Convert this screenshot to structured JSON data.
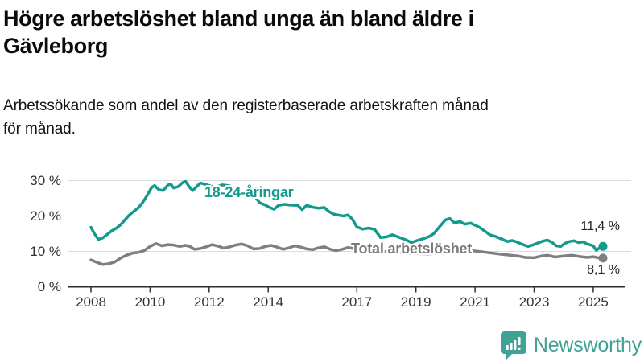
{
  "header": {
    "title_line1": "Högre arbetslöshet bland unga än bland äldre i",
    "title_line2": "Gävleborg",
    "subtitle_line1": "Arbetssökande som andel av den registerbaserade arbetskraften månad",
    "subtitle_line2": "för månad."
  },
  "colors": {
    "accent_teal": "#149a8d",
    "line_gray": "#7f7f7f",
    "label_gray": "#7a7a7a",
    "gridline": "#dcdcdc",
    "axis": "#2e2e2e",
    "tick_text": "#333333",
    "value_text": "#222222",
    "brand_teal": "#3fa294"
  },
  "branding": {
    "name": "Newsworthy",
    "icon": "newsworthy-bar-chart-bubble-icon"
  },
  "chart_data": {
    "type": "line",
    "unit": "%",
    "frequency": "monthly",
    "xlabel": "",
    "ylabel": "",
    "ylim": [
      0,
      30
    ],
    "x_range": [
      2008,
      2025.5
    ],
    "grid": "horizontal",
    "y_ticks": [
      {
        "value": 0,
        "label": "0 %"
      },
      {
        "value": 10,
        "label": "10 %"
      },
      {
        "value": 20,
        "label": "20 %"
      },
      {
        "value": 30,
        "label": "30 %"
      }
    ],
    "x_ticks": [
      {
        "value": 2008,
        "label": "2008"
      },
      {
        "value": 2010,
        "label": "2010"
      },
      {
        "value": 2012,
        "label": "2012"
      },
      {
        "value": 2014,
        "label": "2014"
      },
      {
        "value": 2017,
        "label": "2017"
      },
      {
        "value": 2019,
        "label": "2019"
      },
      {
        "value": 2021,
        "label": "2021"
      },
      {
        "value": 2023,
        "label": "2023"
      },
      {
        "value": 2025,
        "label": "2025"
      }
    ],
    "series": [
      {
        "id": "young",
        "name": "18-24-åringar",
        "color": "#149a8d",
        "end_label": "11,4 %",
        "end_value": 11.4,
        "points": [
          [
            2008.0,
            16.8
          ],
          [
            2008.1,
            15.2
          ],
          [
            2008.25,
            13.4
          ],
          [
            2008.4,
            13.8
          ],
          [
            2008.55,
            14.8
          ],
          [
            2008.7,
            15.8
          ],
          [
            2008.85,
            16.5
          ],
          [
            2009.0,
            17.5
          ],
          [
            2009.15,
            18.9
          ],
          [
            2009.3,
            20.3
          ],
          [
            2009.45,
            21.3
          ],
          [
            2009.6,
            22.3
          ],
          [
            2009.75,
            23.8
          ],
          [
            2009.9,
            25.8
          ],
          [
            2010.05,
            28.0
          ],
          [
            2010.15,
            28.6
          ],
          [
            2010.3,
            27.4
          ],
          [
            2010.45,
            27.2
          ],
          [
            2010.6,
            28.7
          ],
          [
            2010.7,
            29.0
          ],
          [
            2010.8,
            27.9
          ],
          [
            2010.95,
            28.3
          ],
          [
            2011.1,
            29.4
          ],
          [
            2011.2,
            29.8
          ],
          [
            2011.35,
            28.0
          ],
          [
            2011.45,
            27.2
          ],
          [
            2011.6,
            28.5
          ],
          [
            2011.7,
            29.3
          ],
          [
            2011.85,
            29.0
          ],
          [
            2012.0,
            28.6
          ],
          [
            2012.2,
            28.1
          ],
          [
            2012.45,
            28.8
          ],
          [
            2012.7,
            28.5
          ],
          [
            2012.9,
            27.5
          ],
          [
            2013.1,
            26.6
          ],
          [
            2013.3,
            25.9
          ],
          [
            2013.55,
            25.6
          ],
          [
            2013.7,
            23.8
          ],
          [
            2013.9,
            23.1
          ],
          [
            2014.05,
            22.4
          ],
          [
            2014.2,
            21.9
          ],
          [
            2014.35,
            23.0
          ],
          [
            2014.55,
            23.3
          ],
          [
            2014.75,
            23.1
          ],
          [
            2015.0,
            23.0
          ],
          [
            2015.15,
            21.8
          ],
          [
            2015.3,
            23.0
          ],
          [
            2015.5,
            22.5
          ],
          [
            2015.7,
            22.2
          ],
          [
            2015.9,
            22.4
          ],
          [
            2016.05,
            21.3
          ],
          [
            2016.2,
            20.6
          ],
          [
            2016.4,
            20.2
          ],
          [
            2016.55,
            20.0
          ],
          [
            2016.7,
            20.3
          ],
          [
            2016.85,
            19.1
          ],
          [
            2017.0,
            16.9
          ],
          [
            2017.2,
            16.3
          ],
          [
            2017.4,
            16.6
          ],
          [
            2017.6,
            16.2
          ],
          [
            2017.8,
            13.9
          ],
          [
            2018.0,
            14.1
          ],
          [
            2018.2,
            14.7
          ],
          [
            2018.45,
            13.9
          ],
          [
            2018.65,
            13.3
          ],
          [
            2018.85,
            12.5
          ],
          [
            2019.05,
            13.1
          ],
          [
            2019.25,
            13.6
          ],
          [
            2019.45,
            14.2
          ],
          [
            2019.6,
            15.0
          ],
          [
            2019.8,
            17.0
          ],
          [
            2020.0,
            18.9
          ],
          [
            2020.15,
            19.3
          ],
          [
            2020.3,
            18.1
          ],
          [
            2020.5,
            18.4
          ],
          [
            2020.65,
            17.7
          ],
          [
            2020.85,
            18.0
          ],
          [
            2021.0,
            17.4
          ],
          [
            2021.15,
            16.8
          ],
          [
            2021.3,
            15.9
          ],
          [
            2021.5,
            14.7
          ],
          [
            2021.7,
            14.2
          ],
          [
            2021.9,
            13.5
          ],
          [
            2022.1,
            12.8
          ],
          [
            2022.25,
            13.1
          ],
          [
            2022.4,
            12.7
          ],
          [
            2022.6,
            12.0
          ],
          [
            2022.8,
            11.4
          ],
          [
            2022.95,
            11.8
          ],
          [
            2023.1,
            12.3
          ],
          [
            2023.3,
            12.9
          ],
          [
            2023.45,
            13.2
          ],
          [
            2023.6,
            12.6
          ],
          [
            2023.75,
            11.6
          ],
          [
            2023.9,
            11.4
          ],
          [
            2024.05,
            12.3
          ],
          [
            2024.2,
            12.8
          ],
          [
            2024.35,
            13.0
          ],
          [
            2024.5,
            12.5
          ],
          [
            2024.65,
            12.7
          ],
          [
            2024.8,
            12.1
          ],
          [
            2025.0,
            11.6
          ],
          [
            2025.1,
            10.3
          ],
          [
            2025.2,
            10.9
          ],
          [
            2025.33,
            11.4
          ]
        ]
      },
      {
        "id": "total",
        "name": "Total arbetslöshet",
        "color": "#7f7f7f",
        "end_label": "8,1 %",
        "end_value": 8.1,
        "points": [
          [
            2008.0,
            7.6
          ],
          [
            2008.2,
            6.9
          ],
          [
            2008.4,
            6.3
          ],
          [
            2008.6,
            6.5
          ],
          [
            2008.8,
            7.0
          ],
          [
            2009.0,
            8.1
          ],
          [
            2009.2,
            8.9
          ],
          [
            2009.4,
            9.5
          ],
          [
            2009.6,
            9.7
          ],
          [
            2009.8,
            10.2
          ],
          [
            2010.0,
            11.4
          ],
          [
            2010.2,
            12.2
          ],
          [
            2010.4,
            11.6
          ],
          [
            2010.6,
            11.9
          ],
          [
            2010.8,
            11.8
          ],
          [
            2011.0,
            11.4
          ],
          [
            2011.2,
            11.7
          ],
          [
            2011.35,
            11.4
          ],
          [
            2011.5,
            10.6
          ],
          [
            2011.7,
            10.8
          ],
          [
            2011.9,
            11.3
          ],
          [
            2012.1,
            11.9
          ],
          [
            2012.3,
            11.5
          ],
          [
            2012.5,
            10.9
          ],
          [
            2012.7,
            11.3
          ],
          [
            2012.9,
            11.8
          ],
          [
            2013.1,
            12.1
          ],
          [
            2013.3,
            11.6
          ],
          [
            2013.5,
            10.7
          ],
          [
            2013.7,
            10.8
          ],
          [
            2013.9,
            11.4
          ],
          [
            2014.1,
            11.7
          ],
          [
            2014.3,
            11.2
          ],
          [
            2014.5,
            10.6
          ],
          [
            2014.7,
            11.0
          ],
          [
            2014.9,
            11.6
          ],
          [
            2015.1,
            11.2
          ],
          [
            2015.3,
            10.7
          ],
          [
            2015.5,
            10.5
          ],
          [
            2015.7,
            11.0
          ],
          [
            2015.9,
            11.3
          ],
          [
            2016.1,
            10.6
          ],
          [
            2016.3,
            10.2
          ],
          [
            2016.5,
            10.6
          ],
          [
            2016.7,
            11.1
          ],
          [
            2016.9,
            10.8
          ],
          [
            2017.1,
            10.6
          ],
          [
            2017.4,
            10.2
          ],
          [
            2017.7,
            10.0
          ],
          [
            2018.0,
            9.9
          ],
          [
            2018.3,
            9.7
          ],
          [
            2018.6,
            9.5
          ],
          [
            2019.0,
            9.4
          ],
          [
            2019.4,
            9.3
          ],
          [
            2019.8,
            9.5
          ],
          [
            2020.1,
            10.1
          ],
          [
            2020.35,
            10.7
          ],
          [
            2020.6,
            10.5
          ],
          [
            2020.9,
            10.2
          ],
          [
            2021.2,
            9.9
          ],
          [
            2021.5,
            9.6
          ],
          [
            2021.8,
            9.3
          ],
          [
            2022.0,
            9.1
          ],
          [
            2022.2,
            8.9
          ],
          [
            2022.45,
            8.7
          ],
          [
            2022.7,
            8.3
          ],
          [
            2023.0,
            8.2
          ],
          [
            2023.25,
            8.7
          ],
          [
            2023.45,
            8.9
          ],
          [
            2023.7,
            8.4
          ],
          [
            2024.0,
            8.7
          ],
          [
            2024.3,
            8.9
          ],
          [
            2024.5,
            8.6
          ],
          [
            2024.8,
            8.3
          ],
          [
            2025.0,
            8.5
          ],
          [
            2025.15,
            8.2
          ],
          [
            2025.33,
            8.1
          ]
        ]
      }
    ]
  }
}
